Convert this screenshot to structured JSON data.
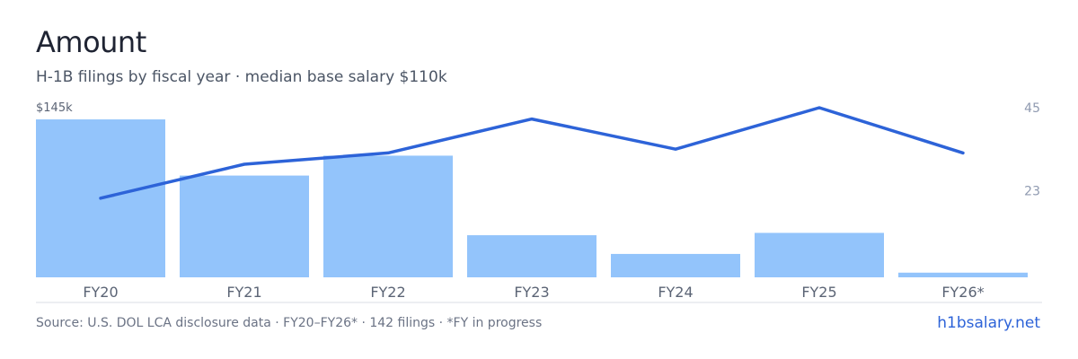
{
  "header": {
    "title": "Amount",
    "subtitle": "H-1B filings by fiscal year · median base salary $110k"
  },
  "footer": {
    "source": "Source: U.S. DOL LCA disclosure data · FY20–FY26* · 142 filings · *FY in progress",
    "brand": "h1bsalary.net"
  },
  "colors": {
    "bar": "#93c4fb",
    "line": "#2d63d8",
    "axis_text": "#5b6475",
    "right_axis_text": "#8f9ab0",
    "baseline": "#d9dde5"
  },
  "chart_data": {
    "type": "bar",
    "categories": [
      "FY20",
      "FY21",
      "FY22",
      "FY23",
      "FY24",
      "FY25",
      "FY26*"
    ],
    "series": [
      {
        "type": "bar",
        "axis": "left",
        "values": [
          135,
          87,
          104,
          36,
          20,
          38,
          4
        ]
      },
      {
        "type": "line",
        "axis": "right",
        "values": [
          21,
          30,
          33,
          42,
          34,
          45,
          33
        ]
      }
    ],
    "y_left": {
      "ylim": [
        0,
        145
      ],
      "ticks": [
        "$145k"
      ]
    },
    "y_right": {
      "ylim": [
        0,
        45
      ],
      "ticks": [
        "45",
        "23"
      ]
    },
    "grid": false,
    "legend": "none"
  }
}
